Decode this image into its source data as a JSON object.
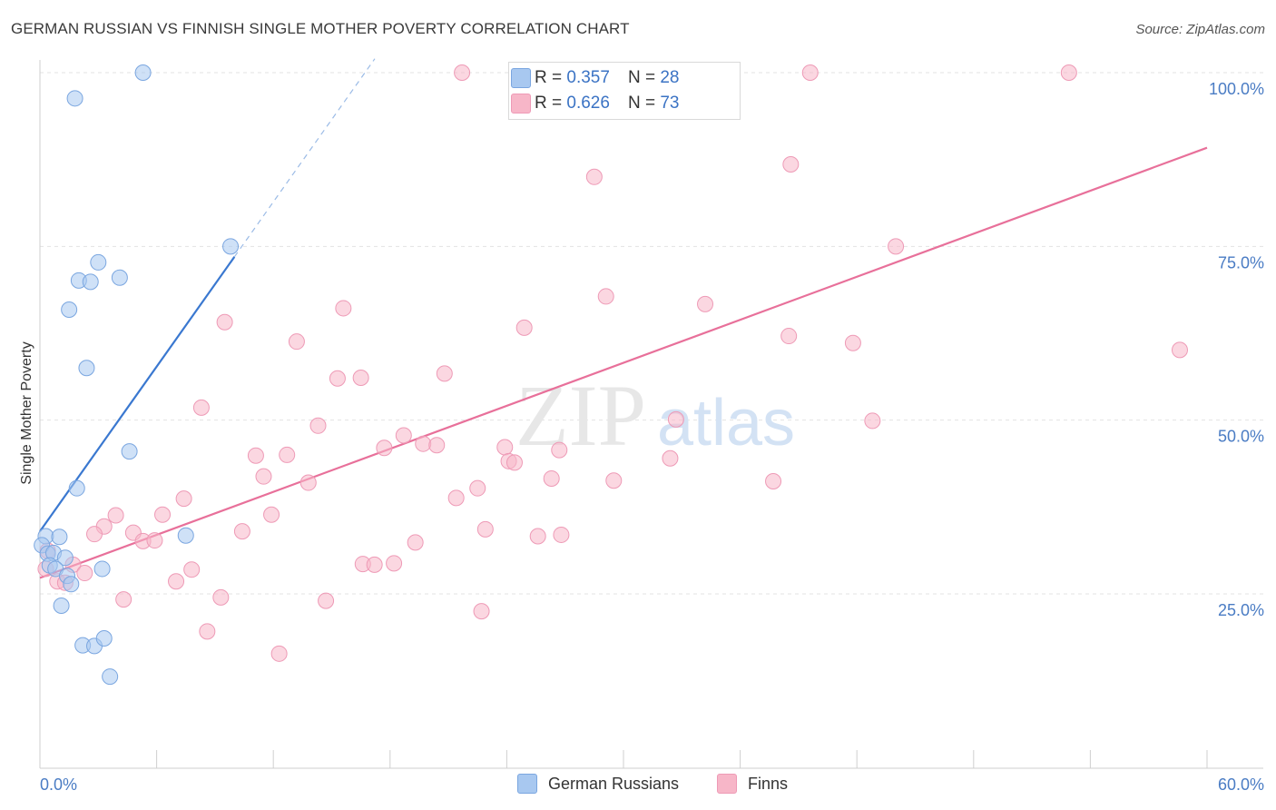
{
  "title": "GERMAN RUSSIAN VS FINNISH SINGLE MOTHER POVERTY CORRELATION CHART",
  "source": "Source: ZipAtlas.com",
  "watermark": {
    "zip": "ZIP",
    "atlas": "atlas"
  },
  "legend_top": [
    {
      "r_label": "R = ",
      "r_value": "0.357",
      "n_label": "N = ",
      "n_value": "28",
      "color": "#a8c8f0"
    },
    {
      "r_label": "R = ",
      "r_value": "0.626",
      "n_label": "N = ",
      "n_value": "73",
      "color": "#f7b6c8"
    }
  ],
  "legend_bottom": [
    {
      "label": "German Russians",
      "color": "#a8c8f0"
    },
    {
      "label": "Finns",
      "color": "#f7b6c8"
    }
  ],
  "chart_data": {
    "type": "scatter",
    "title": "GERMAN RUSSIAN VS FINNISH SINGLE MOTHER POVERTY CORRELATION CHART",
    "xlabel": "",
    "ylabel": "Single Mother Poverty",
    "xlim": [
      0,
      60
    ],
    "ylim": [
      0,
      102
    ],
    "x_tick_labels": [
      {
        "value": 0,
        "label": "0.0%"
      },
      {
        "value": 60,
        "label": "60.0%"
      }
    ],
    "y_tick_labels": [
      {
        "value": 25,
        "label": "25.0%"
      },
      {
        "value": 50,
        "label": "50.0%"
      },
      {
        "value": 75,
        "label": "75.0%"
      },
      {
        "value": 100,
        "label": "100.0%"
      }
    ],
    "series": [
      {
        "name": "German Russians",
        "color": "#3a78d0",
        "fill": "#a8c8f0",
        "points": [
          [
            5.3,
            100
          ],
          [
            1.8,
            96.3
          ],
          [
            9.8,
            75
          ],
          [
            3.0,
            72.7
          ],
          [
            2.0,
            70.1
          ],
          [
            2.6,
            69.9
          ],
          [
            4.1,
            70.5
          ],
          [
            1.5,
            65.9
          ],
          [
            2.4,
            57.5
          ],
          [
            4.6,
            45.5
          ],
          [
            1.9,
            40.2
          ],
          [
            0.3,
            33.3
          ],
          [
            1.0,
            33.2
          ],
          [
            7.5,
            33.4
          ],
          [
            0.1,
            32.0
          ],
          [
            0.4,
            30.8
          ],
          [
            0.7,
            30.9
          ],
          [
            1.3,
            30.2
          ],
          [
            0.5,
            29.1
          ],
          [
            0.8,
            28.6
          ],
          [
            3.2,
            28.6
          ],
          [
            1.4,
            27.6
          ],
          [
            1.6,
            26.4
          ],
          [
            1.1,
            23.3
          ],
          [
            2.2,
            17.6
          ],
          [
            2.8,
            17.5
          ],
          [
            3.3,
            18.6
          ],
          [
            3.6,
            13.1
          ]
        ],
        "trend": {
          "x1": 0.0,
          "y1": 34.0,
          "x2": 10.0,
          "y2": 73.5
        }
      },
      {
        "name": "Finns",
        "color": "#e8709a",
        "fill": "#f7b6c8",
        "points": [
          [
            21.7,
            100
          ],
          [
            29.2,
            100
          ],
          [
            35.5,
            100
          ],
          [
            39.6,
            100
          ],
          [
            52.9,
            100
          ],
          [
            28.5,
            85
          ],
          [
            38.6,
            86.8
          ],
          [
            44.0,
            75
          ],
          [
            58.6,
            60.1
          ],
          [
            29.1,
            67.8
          ],
          [
            34.2,
            66.7
          ],
          [
            38.5,
            62.1
          ],
          [
            41.8,
            61.1
          ],
          [
            24.9,
            63.3
          ],
          [
            15.6,
            66.1
          ],
          [
            9.5,
            64.1
          ],
          [
            13.2,
            61.3
          ],
          [
            15.3,
            56.0
          ],
          [
            16.5,
            56.1
          ],
          [
            20.8,
            56.7
          ],
          [
            8.3,
            51.8
          ],
          [
            14.3,
            49.2
          ],
          [
            32.7,
            50.1
          ],
          [
            42.8,
            49.9
          ],
          [
            18.7,
            47.8
          ],
          [
            19.7,
            46.6
          ],
          [
            20.4,
            46.4
          ],
          [
            17.7,
            46.0
          ],
          [
            23.9,
            46.1
          ],
          [
            26.7,
            45.7
          ],
          [
            24.1,
            44.1
          ],
          [
            24.4,
            43.9
          ],
          [
            32.4,
            44.5
          ],
          [
            11.1,
            44.9
          ],
          [
            12.7,
            45.0
          ],
          [
            11.5,
            41.9
          ],
          [
            13.8,
            41.0
          ],
          [
            26.3,
            41.6
          ],
          [
            29.5,
            41.3
          ],
          [
            37.7,
            41.2
          ],
          [
            22.5,
            40.2
          ],
          [
            21.4,
            38.8
          ],
          [
            7.4,
            38.7
          ],
          [
            6.3,
            36.4
          ],
          [
            11.9,
            36.4
          ],
          [
            3.9,
            36.3
          ],
          [
            3.3,
            34.7
          ],
          [
            2.8,
            33.6
          ],
          [
            4.8,
            33.8
          ],
          [
            10.4,
            34.0
          ],
          [
            5.3,
            32.6
          ],
          [
            5.9,
            32.7
          ],
          [
            22.9,
            34.3
          ],
          [
            25.6,
            33.3
          ],
          [
            26.8,
            33.5
          ],
          [
            19.3,
            32.4
          ],
          [
            0.4,
            31.2
          ],
          [
            1.7,
            29.2
          ],
          [
            7.8,
            28.5
          ],
          [
            16.6,
            29.3
          ],
          [
            17.2,
            29.2
          ],
          [
            18.2,
            29.4
          ],
          [
            2.3,
            28.0
          ],
          [
            0.9,
            26.8
          ],
          [
            7.0,
            26.8
          ],
          [
            1.3,
            26.6
          ],
          [
            4.3,
            24.2
          ],
          [
            9.3,
            24.5
          ],
          [
            14.7,
            24.0
          ],
          [
            22.7,
            22.5
          ],
          [
            8.6,
            19.6
          ],
          [
            12.3,
            16.4
          ],
          [
            0.3,
            28.6
          ]
        ],
        "trend": {
          "x1": 0.0,
          "y1": 27.3,
          "x2": 60.0,
          "y2": 89.2
        }
      }
    ]
  }
}
